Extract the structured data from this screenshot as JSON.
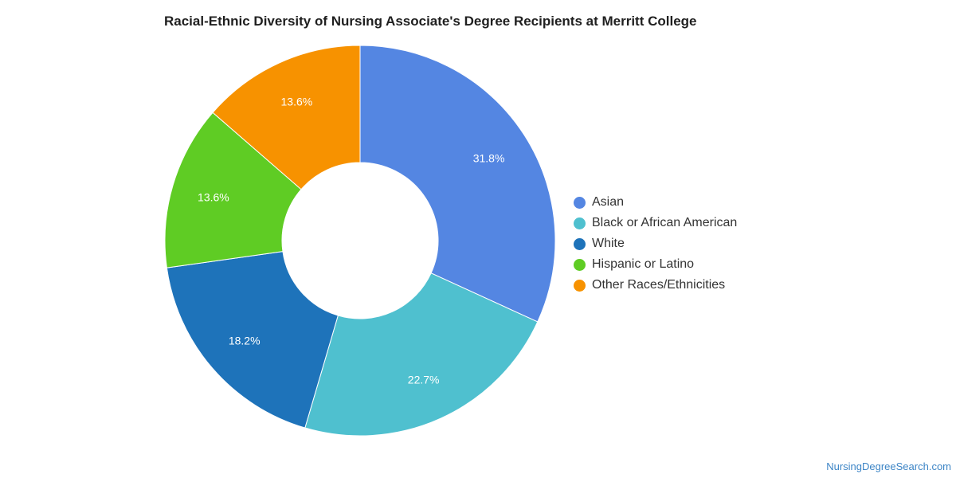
{
  "chart_data": {
    "type": "pie",
    "title": "Racial-Ethnic Diversity of Nursing Associate's Degree Recipients at Merritt College",
    "donut": true,
    "legend_position": "right",
    "slices": [
      {
        "name": "Asian",
        "value": 31.8,
        "label": "31.8%",
        "color": "#5486e2"
      },
      {
        "name": "Black or African American",
        "value": 22.7,
        "label": "22.7%",
        "color": "#4fc0cf"
      },
      {
        "name": "White",
        "value": 18.2,
        "label": "18.2%",
        "color": "#1e73ba"
      },
      {
        "name": "Hispanic or Latino",
        "value": 13.6,
        "label": "13.6%",
        "color": "#5fcc24"
      },
      {
        "name": "Other Races/Ethnicities",
        "value": 13.6,
        "label": "13.6%",
        "color": "#f79200"
      }
    ]
  },
  "watermark": "NursingDegreeSearch.com"
}
